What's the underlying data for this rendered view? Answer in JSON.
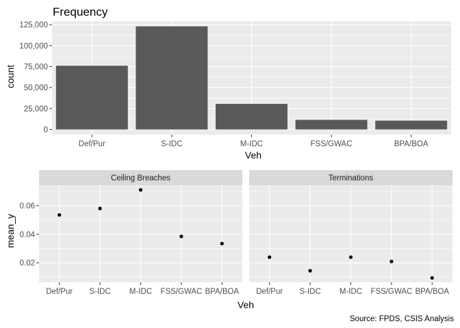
{
  "colors": {
    "panel_bg": "#ebebeb",
    "grid": "#ffffff",
    "bar": "#595959",
    "point": "#000000",
    "strip_bg": "#d9d9d9",
    "tick_text": "#4d4d4d"
  },
  "chart_data": [
    {
      "type": "bar",
      "title": "Frequency",
      "xlabel": "Veh",
      "ylabel": "count",
      "categories": [
        "Def/Pur",
        "S-IDC",
        "M-IDC",
        "FSS/GWAC",
        "BPA/BOA"
      ],
      "values": [
        76000,
        123000,
        30500,
        11500,
        10500
      ],
      "ylim": [
        -6150,
        129150
      ],
      "yticks": [
        0,
        25000,
        50000,
        75000,
        100000,
        125000
      ],
      "ytick_labels": [
        "0",
        "25,000",
        "50,000",
        "75,000",
        "100,000",
        "125,000"
      ],
      "grid": true
    },
    {
      "type": "scatter",
      "xlabel": "Veh",
      "ylabel": "mean_y",
      "categories": [
        "Def/Pur",
        "S-IDC",
        "M-IDC",
        "FSS/GWAC",
        "BPA/BOA"
      ],
      "ylim": [
        0.0065,
        0.0743
      ],
      "yticks": [
        0.02,
        0.04,
        0.06
      ],
      "ytick_labels": [
        "0.02",
        "0.04",
        "0.06"
      ],
      "grid": true,
      "facets": [
        {
          "label": "Ceiling Breaches",
          "values": [
            0.0535,
            0.058,
            0.071,
            0.0385,
            0.0335
          ]
        },
        {
          "label": "Terminations",
          "values": [
            0.024,
            0.0145,
            0.024,
            0.021,
            0.0095
          ]
        }
      ]
    }
  ],
  "caption": "Source: FPDS, CSIS Analysis"
}
